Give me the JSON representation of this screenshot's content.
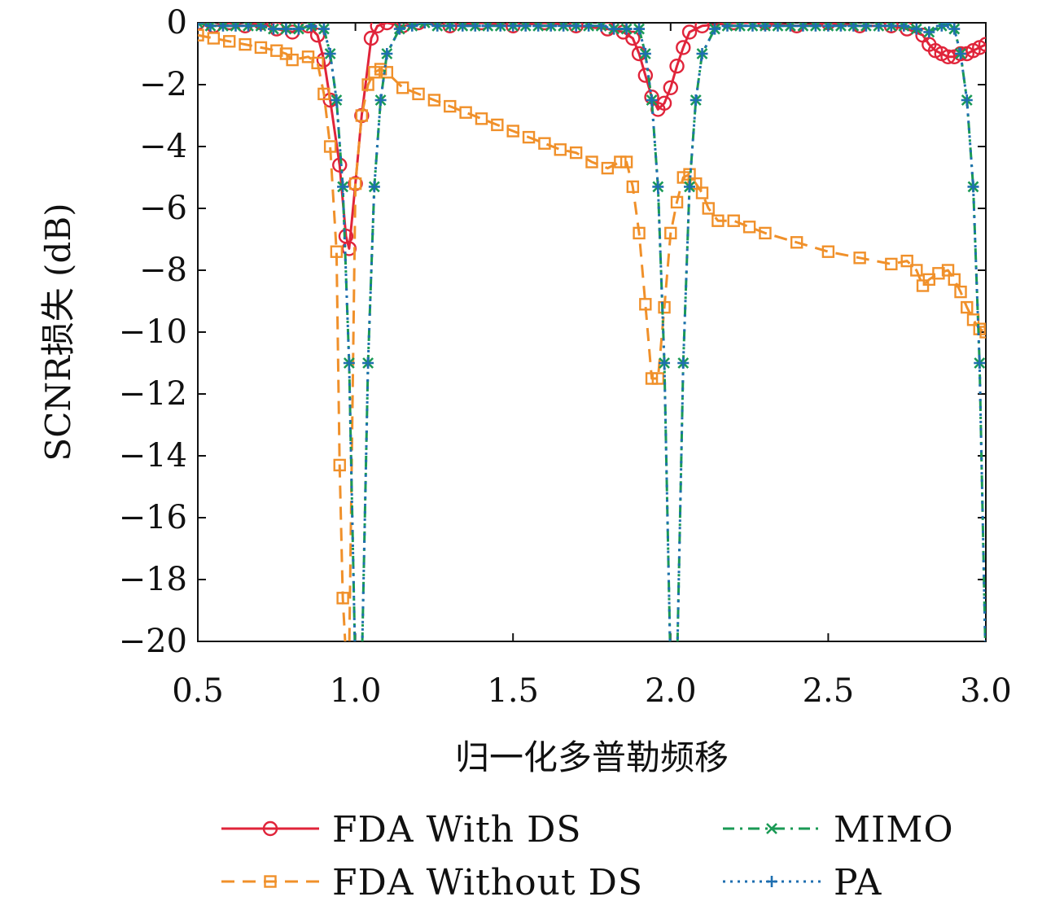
{
  "chart_data": {
    "type": "line",
    "title": "",
    "xlabel": "归一化多普勒频移",
    "ylabel": "SCNR损失 (dB)",
    "xlim": [
      0.5,
      3.0
    ],
    "ylim": [
      -20,
      0
    ],
    "xticks": [
      "0.5",
      "1.0",
      "1.5",
      "2.0",
      "2.5",
      "3.0"
    ],
    "yticks": [
      "0",
      "−2",
      "−4",
      "−6",
      "−8",
      "−10",
      "−12",
      "−14",
      "−16",
      "−18",
      "−20"
    ],
    "grid": false,
    "legend_position": "bottom",
    "series": [
      {
        "name": "FDA With DS",
        "color": "#e0243a",
        "line_style": "solid",
        "marker": "circle",
        "x": [
          0.5,
          0.55,
          0.6,
          0.65,
          0.7,
          0.75,
          0.8,
          0.85,
          0.88,
          0.9,
          0.92,
          0.95,
          0.97,
          0.98,
          1.0,
          1.02,
          1.05,
          1.07,
          1.1,
          1.15,
          1.2,
          1.3,
          1.4,
          1.5,
          1.6,
          1.7,
          1.8,
          1.85,
          1.88,
          1.9,
          1.92,
          1.94,
          1.96,
          1.98,
          2.0,
          2.02,
          2.04,
          2.06,
          2.1,
          2.2,
          2.3,
          2.4,
          2.5,
          2.6,
          2.7,
          2.75,
          2.8,
          2.82,
          2.84,
          2.86,
          2.88,
          2.9,
          2.92,
          2.94,
          2.96,
          2.98,
          3.0
        ],
        "y": [
          0,
          -0.1,
          0,
          -0.1,
          0,
          -0.2,
          -0.3,
          -0.1,
          -0.4,
          -1.2,
          -2.5,
          -4.6,
          -6.9,
          -7.3,
          -5.2,
          -3.0,
          -0.5,
          -0.1,
          0,
          -0.1,
          0,
          -0.1,
          0,
          -0.1,
          0,
          -0.1,
          -0.2,
          -0.3,
          -0.5,
          -1.0,
          -1.7,
          -2.4,
          -2.8,
          -2.6,
          -2.1,
          -1.4,
          -0.8,
          -0.3,
          -0.1,
          0,
          0,
          -0.1,
          0,
          -0.1,
          -0.1,
          -0.2,
          -0.4,
          -0.7,
          -0.9,
          -1.0,
          -1.1,
          -1.1,
          -1.0,
          -1.0,
          -0.9,
          -0.8,
          -0.7
        ]
      },
      {
        "name": "FDA Without DS",
        "color": "#f0902a",
        "line_style": "dashed",
        "marker": "square",
        "x": [
          0.5,
          0.55,
          0.6,
          0.65,
          0.7,
          0.75,
          0.78,
          0.8,
          0.85,
          0.88,
          0.9,
          0.92,
          0.94,
          0.95,
          0.96,
          0.97,
          0.98,
          1.0,
          1.02,
          1.04,
          1.06,
          1.08,
          1.1,
          1.15,
          1.2,
          1.25,
          1.3,
          1.35,
          1.4,
          1.45,
          1.5,
          1.55,
          1.6,
          1.65,
          1.7,
          1.75,
          1.8,
          1.84,
          1.86,
          1.88,
          1.9,
          1.92,
          1.94,
          1.96,
          1.98,
          2.0,
          2.02,
          2.04,
          2.06,
          2.08,
          2.1,
          2.12,
          2.15,
          2.2,
          2.25,
          2.3,
          2.4,
          2.5,
          2.6,
          2.7,
          2.75,
          2.78,
          2.8,
          2.82,
          2.85,
          2.88,
          2.9,
          2.92,
          2.94,
          2.96,
          2.98,
          3.0
        ],
        "y": [
          -0.4,
          -0.5,
          -0.6,
          -0.7,
          -0.8,
          -0.9,
          -1.0,
          -1.2,
          -1.1,
          -1.3,
          -2.3,
          -4.0,
          -7.4,
          -14.3,
          -18.6,
          -20.5,
          -20.5,
          -5.2,
          -3.0,
          -2.0,
          -1.6,
          -1.5,
          -1.6,
          -2.1,
          -2.3,
          -2.5,
          -2.7,
          -2.9,
          -3.1,
          -3.3,
          -3.5,
          -3.7,
          -3.9,
          -4.1,
          -4.2,
          -4.5,
          -4.7,
          -4.5,
          -4.5,
          -5.3,
          -6.8,
          -9.1,
          -11.5,
          -11.5,
          -9.2,
          -6.8,
          -5.8,
          -5.0,
          -4.9,
          -5.2,
          -5.5,
          -6.0,
          -6.4,
          -6.4,
          -6.6,
          -6.8,
          -7.1,
          -7.4,
          -7.6,
          -7.8,
          -7.7,
          -8.0,
          -8.5,
          -8.3,
          -8.1,
          -8.0,
          -8.3,
          -8.7,
          -9.2,
          -9.6,
          -9.9,
          -10.0
        ]
      },
      {
        "name": "MIMO",
        "color": "#1a9a55",
        "line_style": "dashdot",
        "marker": "x",
        "x": [
          0.5,
          0.54,
          0.58,
          0.62,
          0.66,
          0.7,
          0.74,
          0.78,
          0.82,
          0.86,
          0.9,
          0.92,
          0.94,
          0.96,
          0.98,
          1.0,
          1.02,
          1.04,
          1.06,
          1.08,
          1.1,
          1.14,
          1.18,
          1.22,
          1.26,
          1.3,
          1.34,
          1.38,
          1.42,
          1.46,
          1.5,
          1.54,
          1.58,
          1.62,
          1.66,
          1.7,
          1.74,
          1.78,
          1.82,
          1.86,
          1.9,
          1.92,
          1.94,
          1.96,
          1.98,
          2.0,
          2.02,
          2.04,
          2.06,
          2.08,
          2.1,
          2.14,
          2.18,
          2.22,
          2.26,
          2.3,
          2.34,
          2.38,
          2.42,
          2.46,
          2.5,
          2.54,
          2.58,
          2.62,
          2.66,
          2.7,
          2.74,
          2.78,
          2.82,
          2.86,
          2.88,
          2.9,
          2.92,
          2.94,
          2.96,
          2.98,
          3.0
        ],
        "y": [
          0,
          -0.1,
          -0.1,
          -0.1,
          -0.1,
          -0.1,
          -0.2,
          -0.2,
          -0.2,
          -0.1,
          -0.2,
          -1.0,
          -2.5,
          -5.3,
          -11.0,
          -21.0,
          -21.0,
          -11.0,
          -5.3,
          -2.5,
          -1.0,
          -0.2,
          -0.1,
          0,
          -0.1,
          -0.1,
          -0.1,
          -0.1,
          -0.1,
          -0.1,
          -0.1,
          -0.1,
          -0.1,
          -0.1,
          -0.1,
          -0.1,
          -0.1,
          -0.1,
          -0.2,
          -0.2,
          -0.2,
          -1.0,
          -2.5,
          -5.3,
          -11.0,
          -21.0,
          -21.0,
          -11.0,
          -5.3,
          -2.5,
          -1.0,
          -0.2,
          -0.1,
          -0.1,
          -0.1,
          -0.1,
          -0.1,
          -0.1,
          -0.1,
          -0.1,
          -0.1,
          -0.1,
          -0.1,
          -0.1,
          -0.1,
          -0.1,
          -0.1,
          -0.2,
          -0.3,
          -0.1,
          0,
          -0.2,
          -1.0,
          -2.5,
          -5.3,
          -11.0,
          -21.0
        ]
      },
      {
        "name": "PA",
        "color": "#1f6fb0",
        "line_style": "dotted",
        "marker": "plus",
        "x": [
          0.5,
          0.54,
          0.58,
          0.62,
          0.66,
          0.7,
          0.74,
          0.78,
          0.82,
          0.86,
          0.9,
          0.92,
          0.94,
          0.96,
          0.98,
          1.0,
          1.02,
          1.04,
          1.06,
          1.08,
          1.1,
          1.14,
          1.18,
          1.22,
          1.26,
          1.3,
          1.34,
          1.38,
          1.42,
          1.46,
          1.5,
          1.54,
          1.58,
          1.62,
          1.66,
          1.7,
          1.74,
          1.78,
          1.82,
          1.86,
          1.9,
          1.92,
          1.94,
          1.96,
          1.98,
          2.0,
          2.02,
          2.04,
          2.06,
          2.08,
          2.1,
          2.14,
          2.18,
          2.22,
          2.26,
          2.3,
          2.34,
          2.38,
          2.42,
          2.46,
          2.5,
          2.54,
          2.58,
          2.62,
          2.66,
          2.7,
          2.74,
          2.78,
          2.82,
          2.86,
          2.88,
          2.9,
          2.92,
          2.94,
          2.96,
          2.98,
          3.0
        ],
        "y": [
          0,
          -0.1,
          -0.1,
          -0.1,
          -0.1,
          -0.1,
          -0.2,
          -0.2,
          -0.2,
          -0.1,
          -0.2,
          -1.0,
          -2.5,
          -5.3,
          -11.0,
          -21.0,
          -21.0,
          -11.0,
          -5.3,
          -2.5,
          -1.0,
          -0.2,
          -0.1,
          0,
          -0.1,
          -0.1,
          -0.1,
          -0.1,
          -0.1,
          -0.1,
          -0.1,
          -0.1,
          -0.1,
          -0.1,
          -0.1,
          -0.1,
          -0.1,
          -0.1,
          -0.2,
          -0.2,
          -0.2,
          -1.0,
          -2.5,
          -5.3,
          -11.0,
          -21.0,
          -21.0,
          -11.0,
          -5.3,
          -2.5,
          -1.0,
          -0.2,
          -0.1,
          -0.1,
          -0.1,
          -0.1,
          -0.1,
          -0.1,
          -0.1,
          -0.1,
          -0.1,
          -0.1,
          -0.1,
          -0.1,
          -0.1,
          -0.1,
          -0.1,
          -0.2,
          -0.3,
          -0.1,
          0,
          -0.2,
          -1.0,
          -2.5,
          -5.3,
          -11.0,
          -21.0
        ]
      }
    ]
  }
}
